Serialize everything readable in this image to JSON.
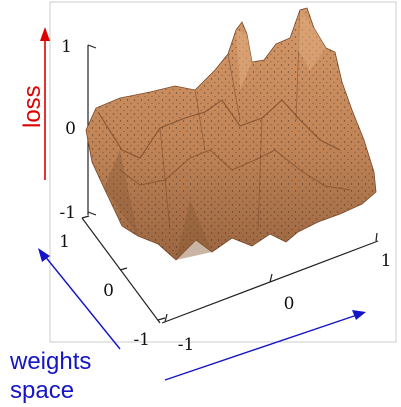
{
  "plot": {
    "vertical_ticks": [
      "1",
      "0",
      "-1"
    ],
    "depth_ticks": [
      "1",
      "0",
      "-1"
    ],
    "horizontal_ticks": [
      "-1",
      "0",
      "1"
    ]
  },
  "annotations": {
    "loss_label": "loss",
    "weights_label_line1": "weights",
    "weights_label_line2": "space"
  },
  "colors": {
    "surface": "#c08457",
    "surface_dark": "#8a5a36",
    "loss_arrow": "#dd0000",
    "weights_arrow": "#1515c8",
    "frame": "#cccccc"
  },
  "icons": [
    "red-up-arrow-icon",
    "blue-arrow-icon"
  ]
}
